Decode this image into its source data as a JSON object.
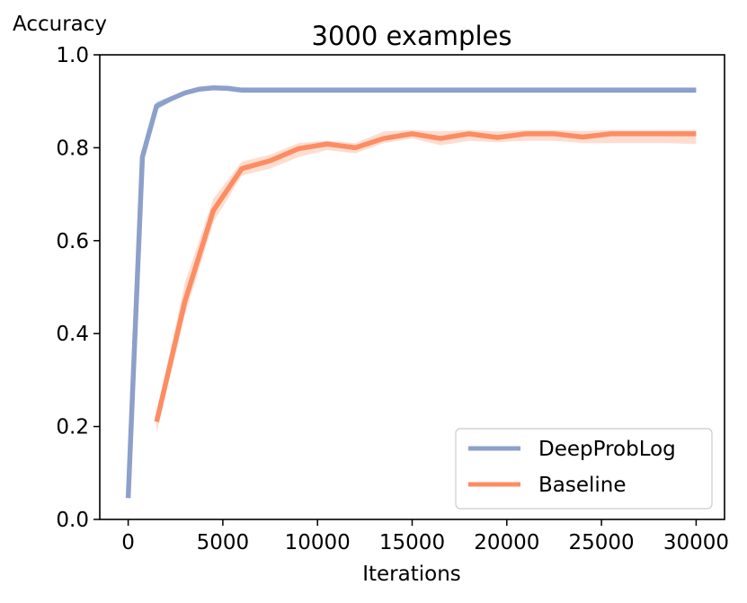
{
  "chart_data": {
    "type": "line",
    "title": "3000 examples",
    "xlabel": "Iterations",
    "ylabel": "Accuracy",
    "xlim": [
      -1500,
      31500
    ],
    "ylim": [
      0.0,
      1.0
    ],
    "xticks": [
      0,
      5000,
      10000,
      15000,
      20000,
      25000,
      30000
    ],
    "xtick_labels": [
      "0",
      "5000",
      "10000",
      "15000",
      "20000",
      "25000",
      "30000"
    ],
    "yticks": [
      0.0,
      0.2,
      0.4,
      0.6,
      0.8,
      1.0
    ],
    "ytick_labels": [
      "0.0",
      "0.2",
      "0.4",
      "0.6",
      "0.8",
      "1.0"
    ],
    "grid": false,
    "legend_position": "bottom-right",
    "series": [
      {
        "name": "DeepProbLog",
        "color": "#8da0cb",
        "x": [
          0,
          750,
          1500,
          2250,
          3000,
          3750,
          4500,
          5250,
          6000,
          7500,
          9000,
          10500,
          12000,
          13500,
          15000,
          16500,
          18000,
          19500,
          21000,
          22500,
          24000,
          25500,
          27000,
          28500,
          30000
        ],
        "y": [
          0.046,
          0.78,
          0.89,
          0.905,
          0.918,
          0.926,
          0.929,
          0.928,
          0.924,
          0.924,
          0.924,
          0.924,
          0.924,
          0.924,
          0.924,
          0.924,
          0.924,
          0.924,
          0.924,
          0.924,
          0.924,
          0.924,
          0.924,
          0.924,
          0.924
        ],
        "y_low": [
          0.046,
          0.77,
          0.88,
          0.9,
          0.914,
          0.922,
          0.924,
          0.922,
          0.918,
          0.918,
          0.918,
          0.918,
          0.918,
          0.918,
          0.918,
          0.918,
          0.918,
          0.918,
          0.918,
          0.918,
          0.918,
          0.918,
          0.918,
          0.918,
          0.918
        ],
        "y_high": [
          0.046,
          0.79,
          0.9,
          0.91,
          0.922,
          0.93,
          0.933,
          0.932,
          0.93,
          0.93,
          0.93,
          0.93,
          0.93,
          0.93,
          0.93,
          0.93,
          0.93,
          0.93,
          0.93,
          0.93,
          0.93,
          0.93,
          0.93,
          0.93,
          0.93
        ]
      },
      {
        "name": "Baseline",
        "color": "#fc8d62",
        "x": [
          1500,
          3000,
          4500,
          6000,
          7500,
          9000,
          10500,
          12000,
          13500,
          15000,
          16500,
          18000,
          19500,
          21000,
          22500,
          24000,
          25500,
          27000,
          28500,
          30000
        ],
        "y": [
          0.21,
          0.47,
          0.665,
          0.755,
          0.772,
          0.798,
          0.808,
          0.8,
          0.82,
          0.83,
          0.82,
          0.83,
          0.822,
          0.83,
          0.83,
          0.823,
          0.83,
          0.83,
          0.83,
          0.83
        ],
        "y_low": [
          0.185,
          0.44,
          0.64,
          0.74,
          0.755,
          0.78,
          0.795,
          0.788,
          0.81,
          0.82,
          0.805,
          0.815,
          0.812,
          0.815,
          0.815,
          0.81,
          0.81,
          0.81,
          0.81,
          0.808
        ],
        "y_high": [
          0.225,
          0.51,
          0.69,
          0.77,
          0.785,
          0.81,
          0.815,
          0.81,
          0.835,
          0.838,
          0.835,
          0.838,
          0.835,
          0.838,
          0.838,
          0.836,
          0.838,
          0.838,
          0.838,
          0.838
        ]
      }
    ]
  }
}
